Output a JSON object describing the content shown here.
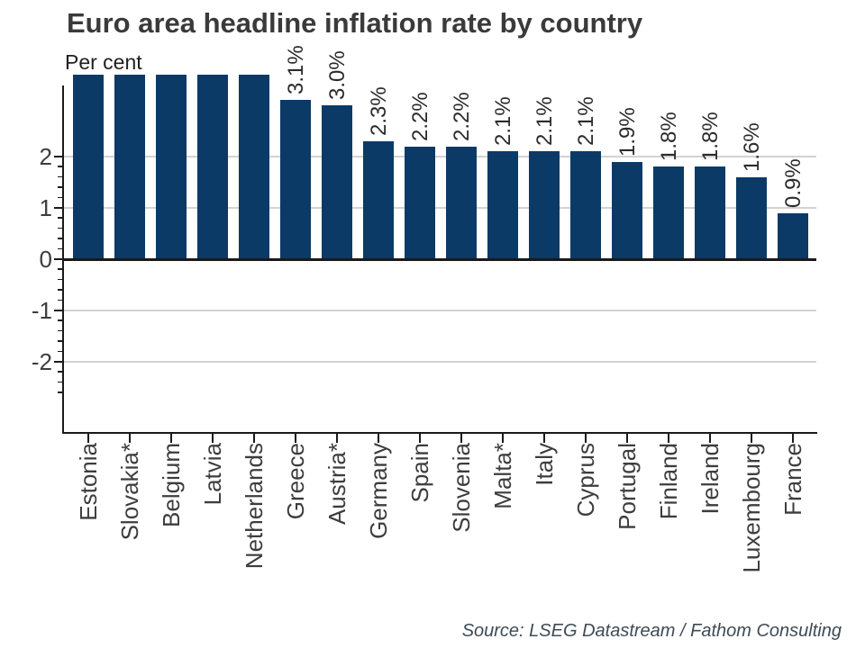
{
  "header": {
    "title": "Euro area headline inflation rate by country",
    "subtitle": "Per cent"
  },
  "footer": {
    "source": "Source: LSEG Datastream / Fathom Consulting"
  },
  "chart_data": {
    "type": "bar",
    "title": "Euro area headline inflation rate by country",
    "units_note": "Per cent",
    "categories": [
      "Estonia",
      "Slovakia*",
      "Belgium",
      "Latvia",
      "Netherlands",
      "Greece",
      "Austria*",
      "Germany",
      "Spain",
      "Slovenia",
      "Malta*",
      "Italy",
      "Cyprus",
      "Portugal",
      "Finland",
      "Ireland",
      "Luxembourg",
      "France"
    ],
    "values": [
      null,
      null,
      null,
      null,
      null,
      3.1,
      3.0,
      2.3,
      2.2,
      2.2,
      2.1,
      2.1,
      2.1,
      1.9,
      1.8,
      1.8,
      1.6,
      0.9
    ],
    "bar_labels": [
      "",
      "",
      "",
      "",
      "",
      "3.1%",
      "3.0%",
      "2.3%",
      "2.2%",
      "2.2%",
      "2.1%",
      "2.1%",
      "2.1%",
      "1.9%",
      "1.8%",
      "1.8%",
      "1.6%",
      "0.9%"
    ],
    "bars_clipped_at_top": [
      "Estonia",
      "Slovakia*",
      "Belgium",
      "Latvia",
      "Netherlands"
    ],
    "labels_clipped_at_top": [
      "Greece",
      "Austria*"
    ],
    "ylabel": "",
    "xlabel": "",
    "yticks_labeled": [
      "2",
      "1",
      "0",
      "-1",
      "-2"
    ],
    "ytick_values": [
      2,
      1,
      0,
      -1,
      -2
    ],
    "minor_tick_step": 0.2,
    "ylim_visible": [
      -3.4,
      3.39
    ],
    "grid": "horizontal gridlines at -2, -1, 1, 2; bold zero line",
    "legend": "none",
    "colors": {
      "bar": "#0c3a66",
      "gridline": "#d2d2d2",
      "axis_and_zero_line": "#1a1a1a",
      "title_text": "#3a3a3a",
      "tick_text": "#3d3d3d",
      "bar_label_text": "#2b2b2b",
      "source_text": "#3e4b55",
      "background": "#ffffff"
    }
  }
}
